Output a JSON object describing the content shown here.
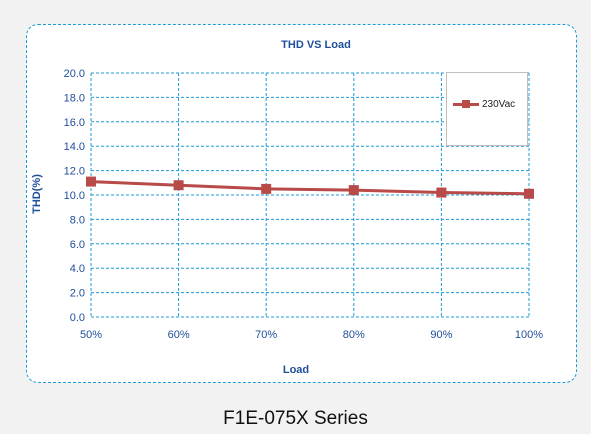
{
  "chart_data": {
    "type": "line",
    "title": "THD VS  Load",
    "xlabel": "Load",
    "ylabel": "THD(%)",
    "categories": [
      "50%",
      "60%",
      "70%",
      "80%",
      "90%",
      "100%"
    ],
    "series": [
      {
        "name": "230Vac",
        "values": [
          11.1,
          10.8,
          10.5,
          10.4,
          10.2,
          10.1
        ]
      }
    ],
    "ylim": [
      0,
      20
    ],
    "yticks": [
      "0.0",
      "2.0",
      "4.0",
      "6.0",
      "8.0",
      "10.0",
      "12.0",
      "14.0",
      "16.0",
      "18.0",
      "20.0"
    ],
    "grid": true,
    "legend_position": "top-right",
    "colors": {
      "series": "#b84a47",
      "grid": "#1e9ad6",
      "title": "#1f4e9a",
      "tick": "#1f4e9a"
    }
  },
  "caption": "F1E-075X Series"
}
